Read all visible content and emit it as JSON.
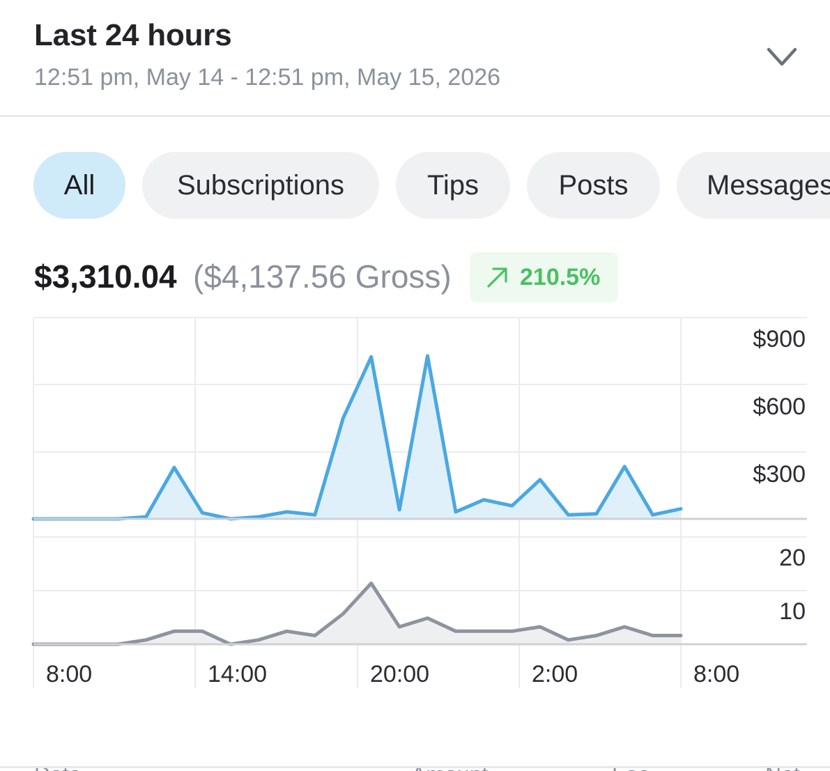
{
  "header": {
    "title": "Last 24 hours",
    "subtitle": "12:51 pm, May 14 - 12:51 pm, May 15, 2026"
  },
  "filters": [
    {
      "label": "All",
      "active": true
    },
    {
      "label": "Subscriptions",
      "active": false
    },
    {
      "label": "Tips",
      "active": false
    },
    {
      "label": "Posts",
      "active": false
    },
    {
      "label": "Messages",
      "active": false
    }
  ],
  "totals": {
    "net": "$3,310.04",
    "gross": "($4,137.56 Gross)",
    "change": "210.5%",
    "change_direction": "up",
    "change_color": "#4cbf63"
  },
  "table_header": {
    "date": "Date",
    "amount": "Amount",
    "fee": "Fee",
    "net": "Net"
  },
  "chart_data": [
    {
      "type": "area",
      "name": "earnings",
      "color": "#4aa8e3",
      "fill": "#dff0fb",
      "x_ticks": [
        "8:00",
        "14:00",
        "20:00",
        "2:00",
        "8:00"
      ],
      "y_ticks": [
        "$900",
        "$600",
        "$300"
      ],
      "ylim": [
        0,
        900
      ],
      "values": [
        0,
        0,
        0,
        0,
        10,
        255,
        30,
        0,
        10,
        35,
        20,
        500,
        805,
        45,
        810,
        35,
        95,
        65,
        195,
        20,
        25,
        260,
        20,
        50
      ]
    },
    {
      "type": "area",
      "name": "count",
      "color": "#8d949e",
      "fill": "#eeeff1",
      "y_ticks": [
        "20",
        "10"
      ],
      "ylim": [
        0,
        20
      ],
      "values": [
        0,
        0,
        0,
        0,
        1,
        3,
        3,
        0,
        1,
        3,
        2,
        7,
        14,
        4,
        6,
        3,
        3,
        3,
        4,
        1,
        2,
        4,
        2,
        2
      ]
    }
  ]
}
